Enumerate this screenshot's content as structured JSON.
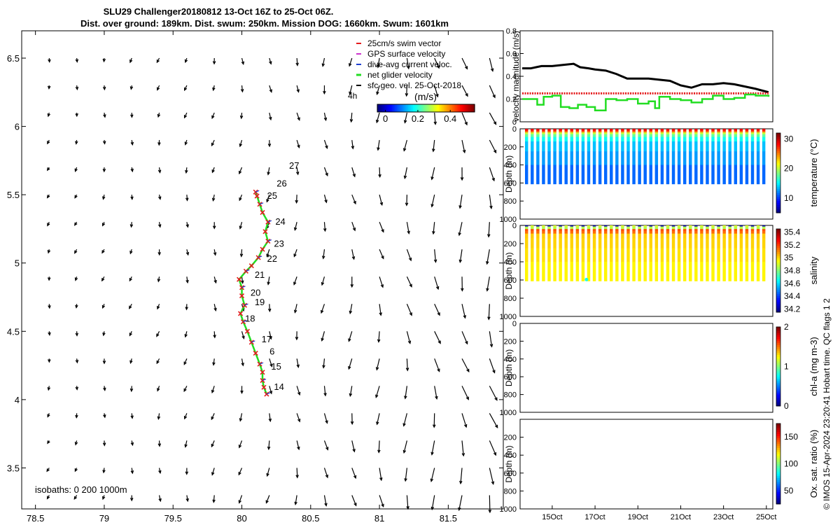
{
  "header": {
    "title_line1": "SLU29 Challenger20180812 13-Oct 16Z to 25-Oct 06Z.",
    "title_line2": "Dist. over ground: 189km. Dist. swum: 250km. Mission DOG: 1660km. Swum: 1601km"
  },
  "side_label": "© IMOS 15-Apr-2024 23:20:41 Hobart time. QC flags 1  2",
  "colors": {
    "swim": "#e41a1c",
    "gps": "#cc33cc",
    "dive": "#1f3fd0",
    "net": "#22dd22",
    "sfc": "#000000",
    "speed": "#000000"
  },
  "chart_data": [
    {
      "type": "map",
      "id": "map",
      "xlim": [
        78.4,
        81.9
      ],
      "ylim": [
        3.2,
        6.7
      ],
      "xticks": [
        "78.5",
        "79",
        "79.5",
        "80",
        "80.5",
        "81",
        "81.5"
      ],
      "xtick_values": [
        78.5,
        79,
        79.5,
        80,
        80.5,
        81,
        81.5
      ],
      "yticks": [
        "3.5",
        "4",
        "4.5",
        "5",
        "5.5",
        "6",
        "6.5"
      ],
      "ytick_values": [
        3.5,
        4,
        4.5,
        5,
        5.5,
        6,
        6.5
      ],
      "legend": [
        {
          "label": "25cm/s swim vector",
          "color_key": "swim"
        },
        {
          "label": "GPS surface velocity",
          "color_key": "gps"
        },
        {
          "label": "dive-avg current veloc.",
          "color_key": "dive"
        },
        {
          "label": "net glider velocity",
          "color_key": "net"
        },
        {
          "label": "sfc geo. vel. 25-Oct-2018",
          "color_key": "sfc"
        }
      ],
      "time_label": "4h",
      "colorbar": {
        "title": "(m/s)",
        "ticks": [
          "0",
          "0.2",
          "0.4"
        ],
        "tick_values": [
          0,
          0.2,
          0.4
        ],
        "range": [
          -0.05,
          0.55
        ]
      },
      "isobaths_label": "isobaths: 0   200   1000m",
      "track": [
        [
          80.18,
          4.04
        ],
        [
          80.16,
          4.09
        ],
        [
          80.15,
          4.14
        ],
        [
          80.15,
          4.2
        ],
        [
          80.13,
          4.26
        ],
        [
          80.1,
          4.34
        ],
        [
          80.07,
          4.42
        ],
        [
          80.04,
          4.5
        ],
        [
          80.01,
          4.57
        ],
        [
          79.99,
          4.63
        ],
        [
          80.02,
          4.69
        ],
        [
          80.0,
          4.76
        ],
        [
          80.0,
          4.82
        ],
        [
          79.98,
          4.88
        ],
        [
          80.03,
          4.94
        ],
        [
          80.07,
          4.98
        ],
        [
          80.12,
          5.04
        ],
        [
          80.15,
          5.1
        ],
        [
          80.19,
          5.16
        ],
        [
          80.17,
          5.23
        ],
        [
          80.19,
          5.3
        ],
        [
          80.15,
          5.37
        ],
        [
          80.13,
          5.43
        ],
        [
          80.11,
          5.49
        ],
        [
          80.1,
          5.52
        ]
      ],
      "day_labels": [
        {
          "text": "14",
          "x": 80.27,
          "y": 4.07
        },
        {
          "text": "15",
          "x": 80.25,
          "y": 4.22
        },
        {
          "text": "6",
          "x": 80.22,
          "y": 4.33
        },
        {
          "text": "17",
          "x": 80.18,
          "y": 4.42
        },
        {
          "text": "18",
          "x": 80.06,
          "y": 4.57
        },
        {
          "text": "19",
          "x": 80.13,
          "y": 4.69
        },
        {
          "text": "20",
          "x": 80.1,
          "y": 4.76
        },
        {
          "text": "21",
          "x": 80.13,
          "y": 4.89
        },
        {
          "text": "22",
          "x": 80.22,
          "y": 5.01
        },
        {
          "text": "23",
          "x": 80.27,
          "y": 5.12
        },
        {
          "text": "24",
          "x": 80.28,
          "y": 5.28
        },
        {
          "text": "25",
          "x": 80.22,
          "y": 5.47
        },
        {
          "text": "26",
          "x": 80.29,
          "y": 5.56
        },
        {
          "text": "27",
          "x": 80.38,
          "y": 5.69
        }
      ],
      "vector_grid": {
        "lon0": 78.4,
        "dlon": 0.2,
        "nlon": 18,
        "lat0": 3.3,
        "dlat": 0.2,
        "nlat": 18
      }
    },
    {
      "type": "line",
      "id": "speed",
      "ylabel": "velocity magnitude (m/s)",
      "xlim": [
        13.5,
        25.3
      ],
      "ylim": [
        0,
        0.8
      ],
      "yticks": [
        "0",
        "0.2",
        "0.4",
        "0.6",
        "0.8"
      ],
      "ytick_values": [
        0,
        0.2,
        0.4,
        0.6,
        0.8
      ],
      "series": [
        {
          "name": "sfc speed",
          "color_key": "speed",
          "x": [
            13.6,
            14.0,
            14.5,
            15.0,
            15.5,
            16.0,
            16.3,
            16.7,
            17.0,
            17.5,
            18.0,
            18.5,
            19.0,
            19.5,
            20.0,
            20.5,
            21.0,
            21.5,
            22.0,
            22.5,
            23.0,
            23.5,
            24.0,
            24.5,
            25.1
          ],
          "values": [
            0.47,
            0.47,
            0.49,
            0.49,
            0.5,
            0.51,
            0.48,
            0.47,
            0.46,
            0.45,
            0.42,
            0.38,
            0.38,
            0.38,
            0.37,
            0.36,
            0.32,
            0.3,
            0.33,
            0.33,
            0.34,
            0.33,
            0.31,
            0.29,
            0.26
          ]
        },
        {
          "name": "swim",
          "color_key": "swim",
          "x": [
            13.6,
            25.1
          ],
          "values": [
            0.25,
            0.25
          ]
        },
        {
          "name": "net",
          "color_key": "net",
          "x": [
            13.6,
            14.0,
            14.3,
            14.6,
            15.0,
            15.4,
            15.8,
            16.2,
            16.6,
            17.0,
            17.5,
            18.0,
            18.5,
            19.0,
            19.5,
            19.8,
            20.0,
            20.5,
            21.0,
            21.5,
            22.0,
            22.5,
            23.0,
            23.5,
            24.0,
            24.5,
            25.1
          ],
          "values": [
            0.2,
            0.2,
            0.15,
            0.22,
            0.23,
            0.13,
            0.12,
            0.15,
            0.13,
            0.1,
            0.2,
            0.19,
            0.2,
            0.16,
            0.18,
            0.12,
            0.22,
            0.2,
            0.19,
            0.17,
            0.2,
            0.23,
            0.2,
            0.21,
            0.24,
            0.23,
            0.22
          ]
        }
      ]
    },
    {
      "type": "heatmap",
      "id": "temperature",
      "ylabel": "Depth (m)",
      "cbar_label": "temperature (°C)",
      "ylim": [
        0,
        1000
      ],
      "yticks": [
        "0",
        "200",
        "400",
        "600",
        "800",
        "1000"
      ],
      "ytick_values": [
        0,
        200,
        400,
        600,
        800,
        1000
      ],
      "cbar_ticks": [
        "10",
        "20",
        "30"
      ],
      "cbar_values": [
        10,
        20,
        30
      ],
      "cbar_range": [
        5,
        32
      ],
      "profiles": 43,
      "max_depth": 610
    },
    {
      "type": "heatmap",
      "id": "salinity",
      "ylabel": "Depth (m)",
      "cbar_label": "salinity",
      "ylim": [
        0,
        1000
      ],
      "yticks": [
        "0",
        "200",
        "400",
        "600",
        "800",
        "1000"
      ],
      "ytick_values": [
        0,
        200,
        400,
        600,
        800,
        1000
      ],
      "cbar_ticks": [
        "34.2",
        "34.4",
        "34.6",
        "34.8",
        "35",
        "35.2",
        "35.4"
      ],
      "cbar_values": [
        34.2,
        34.4,
        34.6,
        34.8,
        35.0,
        35.2,
        35.4
      ],
      "cbar_range": [
        34.15,
        35.45
      ],
      "profiles": 43,
      "max_depth": 610
    },
    {
      "type": "heatmap",
      "id": "chla",
      "ylabel": "Depth (m)",
      "cbar_label": "chl-a (mg m-3)",
      "ylim": [
        0,
        1000
      ],
      "yticks": [
        "0",
        "200",
        "400",
        "600",
        "800",
        "1000"
      ],
      "ytick_values": [
        0,
        200,
        400,
        600,
        800,
        1000
      ],
      "cbar_ticks": [
        "0",
        "1",
        "2"
      ],
      "cbar_values": [
        0,
        1,
        2
      ],
      "cbar_range": [
        0,
        2
      ]
    },
    {
      "type": "heatmap",
      "id": "oxygen",
      "ylabel": "Depth (m)",
      "cbar_label": "Ox. sat. ratio (%)",
      "ylim": [
        0,
        1000
      ],
      "yticks": [
        "200",
        "400",
        "600",
        "800",
        "1000"
      ],
      "ytick_values": [
        200,
        400,
        600,
        800,
        1000
      ],
      "cbar_ticks": [
        "50",
        "100",
        "150"
      ],
      "cbar_values": [
        50,
        100,
        150
      ],
      "cbar_range": [
        25,
        175
      ],
      "xlim": [
        13.5,
        25.3
      ],
      "xticks": [
        "15Oct",
        "17Oct",
        "19Oct",
        "21Oct",
        "23Oct",
        "25Oct"
      ],
      "xtick_values": [
        15,
        17,
        19,
        21,
        23,
        25
      ]
    }
  ]
}
